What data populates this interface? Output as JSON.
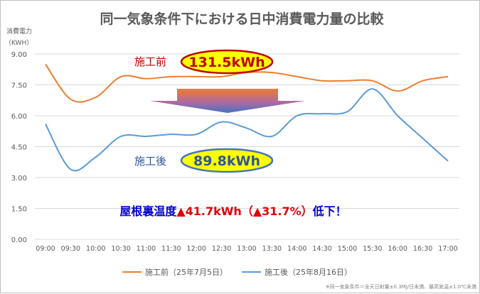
{
  "chart_data": {
    "type": "line",
    "title": "同一気象条件下における日中消費電力量の比較",
    "ylabel_line1": "消費電力",
    "ylabel_line2": "（KWH）",
    "ylim": [
      0,
      9
    ],
    "yticks": [
      "0.00",
      "1.50",
      "3.00",
      "4.50",
      "6.00",
      "7.50",
      "9.00"
    ],
    "ytick_values": [
      0,
      1.5,
      3,
      4.5,
      6,
      7.5,
      9
    ],
    "categories": [
      "09:00",
      "09:30",
      "10:00",
      "10:30",
      "11:00",
      "11:30",
      "12:00",
      "12:30",
      "13:00",
      "13:30",
      "14:00",
      "14:30",
      "15:00",
      "15:30",
      "16:00",
      "16:30",
      "17:00"
    ],
    "grid": true,
    "legend_position": "bottom",
    "series": [
      {
        "name": "施工前（25年7月5日）",
        "color": "#ED7D31",
        "values": [
          8.5,
          6.8,
          6.9,
          7.9,
          7.8,
          7.9,
          7.9,
          7.9,
          8.1,
          8.1,
          7.9,
          7.7,
          7.7,
          7.7,
          7.2,
          7.7,
          7.9
        ]
      },
      {
        "name": "施工後（25年8月16日）",
        "color": "#5B9BD5",
        "values": [
          5.6,
          3.4,
          4.0,
          5.0,
          5.0,
          5.1,
          5.1,
          5.7,
          5.4,
          5.0,
          6.0,
          6.1,
          6.2,
          7.3,
          6.0,
          4.9,
          3.8
        ]
      }
    ],
    "annotations": {
      "before_label": "施工前",
      "before_value": "131.5kWh",
      "after_label": "施工後",
      "after_value": "89.8kWh",
      "reduction_part1": "屋根裏温度",
      "reduction_part2": "▲41.7kWh（▲31.7%）",
      "reduction_part3": "低下！"
    },
    "footnote": "※同一気象条件＝全天日射量±0.3MJ/日未満、最高気温±1.0℃未満"
  }
}
